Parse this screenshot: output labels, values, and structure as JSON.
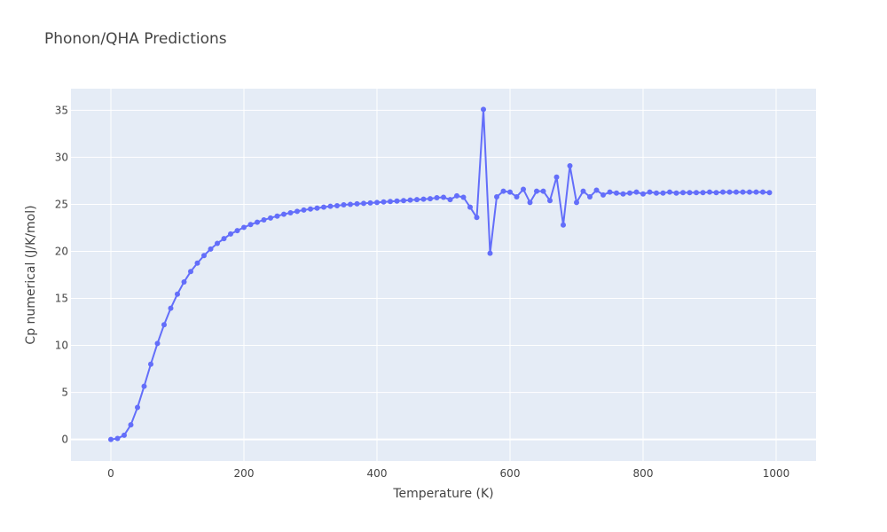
{
  "chart_data": {
    "type": "line",
    "title": "Phonon/QHA Predictions",
    "xlabel": "Temperature (K)",
    "ylabel": "Cp numerical (J/K/mol)",
    "xlim": [
      -60,
      1060
    ],
    "ylim": [
      -2.3,
      37.3
    ],
    "x_ticks": [
      0,
      200,
      400,
      600,
      800,
      1000
    ],
    "y_ticks": [
      0,
      5,
      10,
      15,
      20,
      25,
      30,
      35
    ],
    "grid": true,
    "colors": {
      "background": "#e5ecf6",
      "grid": "#ffffff",
      "series": "#636efa"
    },
    "series": [
      {
        "mode": "lines+markers",
        "x": [
          0,
          10,
          20,
          30,
          40,
          50,
          60,
          70,
          80,
          90,
          100,
          110,
          120,
          130,
          140,
          150,
          160,
          170,
          180,
          190,
          200,
          210,
          220,
          230,
          240,
          250,
          260,
          270,
          280,
          290,
          300,
          310,
          320,
          330,
          340,
          350,
          360,
          370,
          380,
          390,
          400,
          410,
          420,
          430,
          440,
          450,
          460,
          470,
          480,
          490,
          500,
          510,
          520,
          530,
          540,
          550,
          560,
          570,
          580,
          590,
          600,
          610,
          620,
          630,
          640,
          650,
          660,
          670,
          680,
          690,
          700,
          710,
          720,
          730,
          740,
          750,
          760,
          770,
          780,
          790,
          800,
          810,
          820,
          830,
          840,
          850,
          860,
          870,
          880,
          890,
          900,
          910,
          920,
          930,
          940,
          950,
          960,
          970,
          980,
          990
        ],
        "y": [
          0.0,
          0.1,
          0.45,
          1.55,
          3.4,
          5.65,
          8.0,
          10.2,
          12.2,
          13.95,
          15.45,
          16.75,
          17.85,
          18.75,
          19.55,
          20.25,
          20.85,
          21.35,
          21.85,
          22.2,
          22.55,
          22.85,
          23.1,
          23.35,
          23.55,
          23.75,
          23.95,
          24.1,
          24.25,
          24.4,
          24.5,
          24.6,
          24.7,
          24.8,
          24.85,
          24.95,
          25.0,
          25.05,
          25.1,
          25.15,
          25.2,
          25.25,
          25.3,
          25.35,
          25.4,
          25.45,
          25.5,
          25.55,
          25.6,
          25.7,
          25.75,
          25.5,
          25.9,
          25.75,
          24.7,
          23.6,
          35.1,
          19.8,
          25.8,
          26.4,
          26.3,
          25.8,
          26.6,
          25.2,
          26.4,
          26.4,
          25.4,
          27.9,
          22.8,
          29.1,
          25.2,
          26.4,
          25.8,
          26.5,
          26.0,
          26.3,
          26.2,
          26.1,
          26.2,
          26.3,
          26.1,
          26.3,
          26.2,
          26.2,
          26.3,
          26.2,
          26.25,
          26.25,
          26.25,
          26.25,
          26.3,
          26.25,
          26.3,
          26.3,
          26.3,
          26.3,
          26.3,
          26.3,
          26.3,
          26.25
        ]
      }
    ]
  }
}
